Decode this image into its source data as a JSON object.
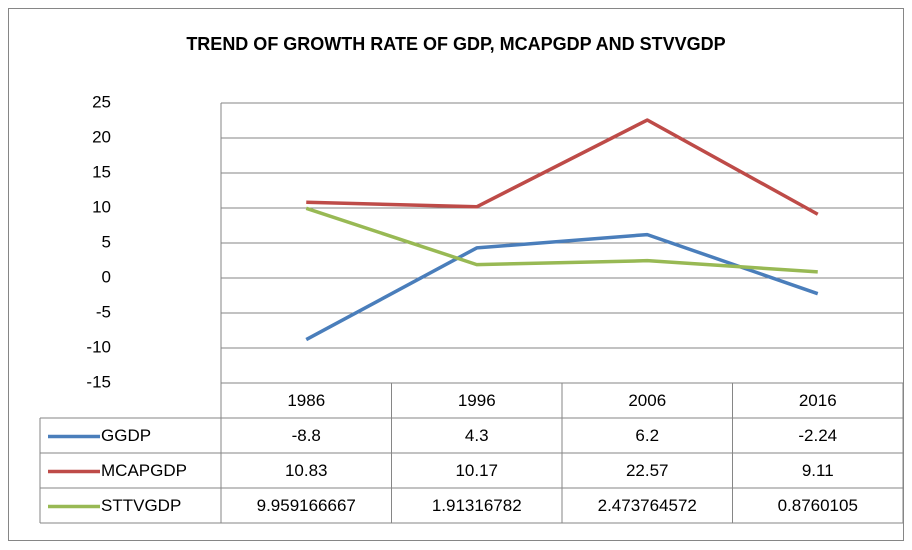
{
  "chart_data": {
    "type": "line",
    "title": "TREND  OF GROWTH RATE OF GDP, MCAPGDP AND STVVGDP",
    "categories": [
      "1986",
      "1996",
      "2006",
      "2016"
    ],
    "series": [
      {
        "name": "GGDP",
        "color": "#4a7ebb",
        "values": [
          -8.8,
          4.3,
          6.2,
          -2.24
        ]
      },
      {
        "name": "MCAPGDP",
        "color": "#be4b48",
        "values": [
          10.83,
          10.17,
          22.57,
          9.11
        ]
      },
      {
        "name": "STTVGDP",
        "color": "#98b954",
        "values": [
          9.959166667,
          1.91316782,
          2.473764572,
          0.8760105
        ]
      }
    ],
    "ylim": [
      -15,
      25
    ],
    "yticks": [
      -15,
      -10,
      -5,
      0,
      5,
      10,
      15,
      20,
      25
    ],
    "grid": true,
    "data_table": true
  }
}
